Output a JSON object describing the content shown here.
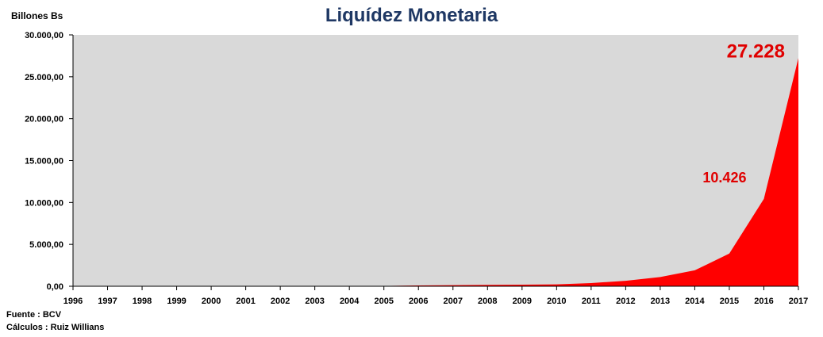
{
  "chart_data": {
    "type": "area",
    "title": "Liquídez Monetaria",
    "ylabel": "Billones Bs",
    "xlabel": "",
    "categories": [
      "1996",
      "1997",
      "1998",
      "1999",
      "2000",
      "2001",
      "2002",
      "2003",
      "2004",
      "2005",
      "2006",
      "2007",
      "2008",
      "2009",
      "2010",
      "2011",
      "2012",
      "2013",
      "2014",
      "2015",
      "2016",
      "2017"
    ],
    "series": [
      {
        "values": [
          0,
          0,
          0,
          0,
          0,
          0,
          0,
          0,
          5,
          40,
          90,
          130,
          160,
          190,
          230,
          380,
          650,
          1100,
          1900,
          3900,
          10426,
          27228
        ]
      }
    ],
    "ylim": [
      0,
      30000
    ],
    "yticks": [
      "0,00",
      "5.000,00",
      "10.000,00",
      "15.000,00",
      "20.000,00",
      "25.000,00",
      "30.000,00"
    ],
    "yticks_values": [
      0,
      5000,
      10000,
      15000,
      20000,
      25000,
      30000
    ],
    "annotations": [
      {
        "text": "27.228",
        "category": "2017",
        "value": 27228
      },
      {
        "text": "10.426",
        "category": "2016",
        "value": 10426
      }
    ],
    "grid": false,
    "legend": "none",
    "colors": {
      "fill": "#ff0000",
      "plot_background": "#d9d9d9",
      "title": "#1f3864",
      "annotation": "#e00000"
    }
  },
  "footer": {
    "source": "Fuente : BCV",
    "calculations": "Cálculos : Ruiz Willians"
  }
}
